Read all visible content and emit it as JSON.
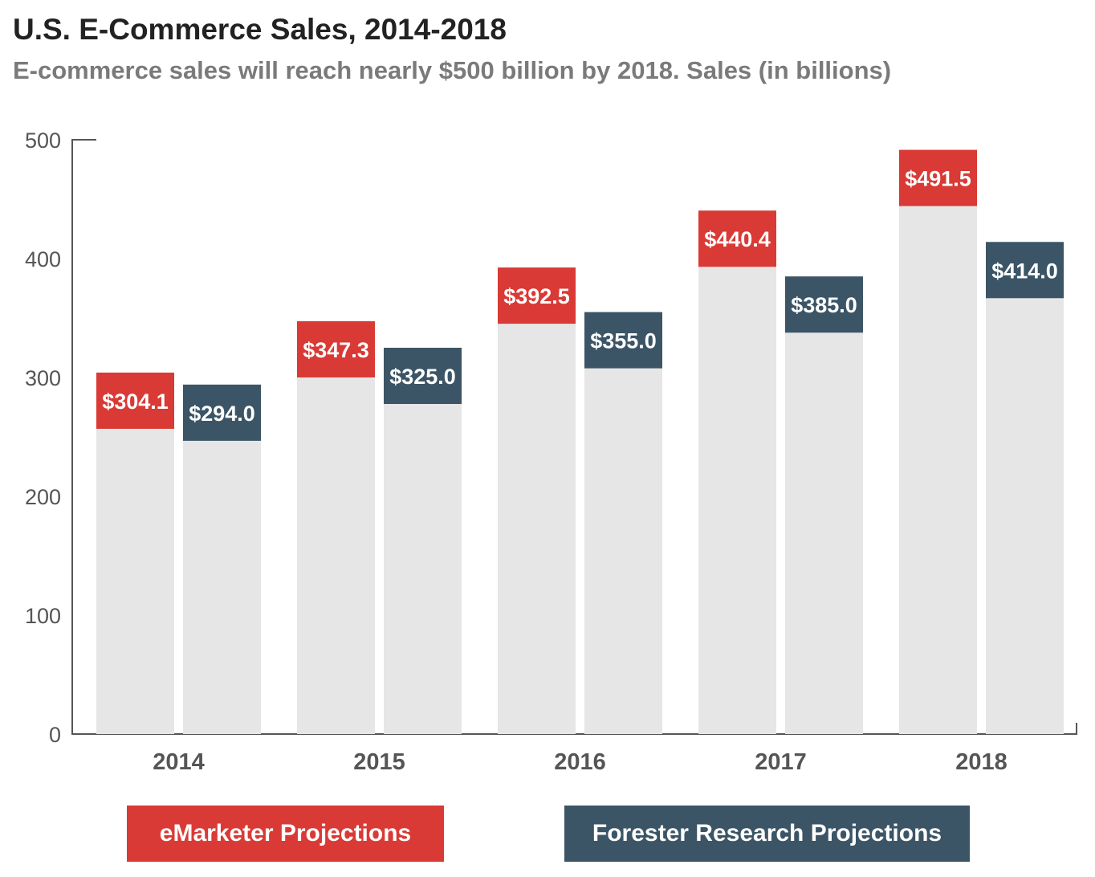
{
  "title": "U.S. E-Commerce Sales, 2014-2018",
  "subtitle": "E-commerce sales will reach nearly $500 billion by 2018. Sales (in billions)",
  "colors": {
    "emarketer": "#d93a35",
    "forester": "#3b5566",
    "bar_base": "#e6e6e6",
    "axis": "#555555",
    "tick_text": "#555555",
    "year_text": "#555555"
  },
  "chart_data": {
    "type": "bar",
    "title": "U.S. E-Commerce Sales, 2014-2018",
    "subtitle": "E-commerce sales will reach nearly $500 billion by 2018. Sales (in billions)",
    "categories": [
      "2014",
      "2015",
      "2016",
      "2017",
      "2018"
    ],
    "series": [
      {
        "name": "eMarketer Projections",
        "values": [
          304.1,
          347.3,
          392.5,
          440.4,
          491.5
        ],
        "labels": [
          "$304.1",
          "$347.3",
          "$392.5",
          "$440.4",
          "$491.5"
        ]
      },
      {
        "name": "Forester Research Projections",
        "values": [
          294.0,
          325.0,
          355.0,
          385.0,
          414.0
        ],
        "labels": [
          "$294.0",
          "$325.0",
          "$355.0",
          "$385.0",
          "$414.0"
        ]
      }
    ],
    "yticks": [
      0,
      100,
      200,
      300,
      400,
      500
    ],
    "ylim": [
      0,
      500
    ],
    "grid": false,
    "legend_position": "bottom"
  }
}
